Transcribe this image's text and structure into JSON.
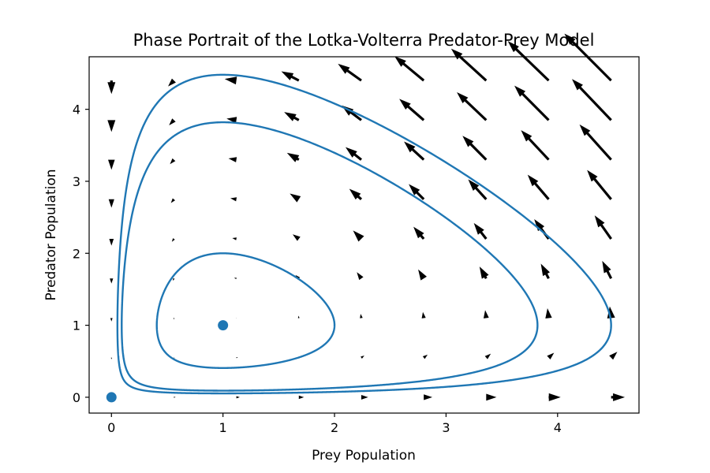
{
  "chart_data": {
    "type": "quiver",
    "title": "Phase Portrait of the Lotka-Volterra Predator-Prey Model",
    "xlabel": "Prey Population",
    "ylabel": "Predator Population",
    "xlim": [
      -0.2,
      4.73
    ],
    "ylim": [
      -0.22,
      4.73
    ],
    "xticks": [
      0,
      1,
      2,
      3,
      4
    ],
    "yticks": [
      0,
      1,
      2,
      3,
      4
    ],
    "grid": false,
    "legend": "none",
    "colors": {
      "trajectory": "#1f77b4",
      "arrows": "#000000",
      "equilibrium": "#1f77b4"
    },
    "model": {
      "alpha": 1.0,
      "beta": 1.0,
      "delta": 1.0,
      "gamma": 1.0
    },
    "vector_field": {
      "x": [
        0,
        0.56,
        1.12,
        1.68,
        2.24,
        2.8,
        3.36,
        3.92,
        4.48
      ],
      "y": [
        0,
        0.55,
        1.1,
        1.65,
        2.2,
        2.75,
        3.3,
        3.85,
        4.4
      ]
    },
    "equilibria": [
      {
        "x": 0,
        "y": 0
      },
      {
        "x": 1,
        "y": 1
      }
    ],
    "trajectories": [
      {
        "x0": 2.0,
        "y0": 1.0
      },
      {
        "x0": 3.82,
        "y0": 1.0
      },
      {
        "x0": 4.48,
        "y0": 1.0
      }
    ]
  }
}
